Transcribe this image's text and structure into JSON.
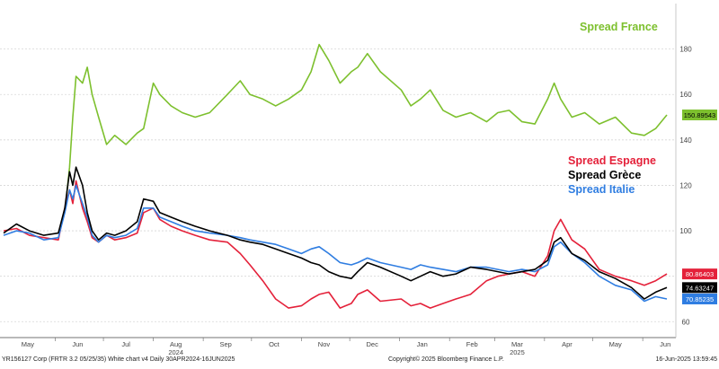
{
  "chart_data": {
    "type": "line",
    "title": "",
    "xlabel": "",
    "ylabel": "",
    "ylim": [
      53,
      200
    ],
    "grid": true,
    "x_ticks": [
      "May",
      "Jun",
      "Jul",
      "Aug",
      "Sep",
      "Oct",
      "Nov",
      "Dec",
      "Jan",
      "Feb",
      "Mar",
      "Apr",
      "May",
      "Jun"
    ],
    "year_labels": [
      "2024",
      "2025"
    ],
    "y_ticks": [
      60,
      80,
      100,
      120,
      140,
      160,
      180
    ],
    "x_range": [
      "2024-04-30",
      "2025-06-16"
    ],
    "legend": [
      {
        "label": "Spread France",
        "color": "#7dc02e"
      },
      {
        "label": "Spread Espagne",
        "color": "#e4213a"
      },
      {
        "label": "Spread Grèce",
        "color": "#000000"
      },
      {
        "label": "Spread Italie",
        "color": "#2f7de1"
      }
    ],
    "series": [
      {
        "name": "Spread France",
        "color": "#7dc02e",
        "last_value": "150.89543",
        "x": [
          "2024-04-30",
          "2024-05-08",
          "2024-05-16",
          "2024-05-25",
          "2024-06-03",
          "2024-06-07",
          "2024-06-10",
          "2024-06-12",
          "2024-06-14",
          "2024-06-18",
          "2024-06-21",
          "2024-06-24",
          "2024-06-28",
          "2024-07-03",
          "2024-07-08",
          "2024-07-15",
          "2024-07-22",
          "2024-07-26",
          "2024-08-01",
          "2024-08-05",
          "2024-08-12",
          "2024-08-19",
          "2024-08-27",
          "2024-09-05",
          "2024-09-16",
          "2024-09-24",
          "2024-09-30",
          "2024-10-08",
          "2024-10-16",
          "2024-10-24",
          "2024-11-01",
          "2024-11-07",
          "2024-11-12",
          "2024-11-18",
          "2024-11-25",
          "2024-12-02",
          "2024-12-06",
          "2024-12-12",
          "2024-12-20",
          "2025-01-02",
          "2025-01-08",
          "2025-01-14",
          "2025-01-20",
          "2025-01-28",
          "2025-02-05",
          "2025-02-14",
          "2025-02-24",
          "2025-03-03",
          "2025-03-10",
          "2025-03-18",
          "2025-03-26",
          "2025-04-03",
          "2025-04-07",
          "2025-04-11",
          "2025-04-18",
          "2025-04-26",
          "2025-05-05",
          "2025-05-15",
          "2025-05-25",
          "2025-06-02",
          "2025-06-09",
          "2025-06-16"
        ],
        "y": [
          null,
          null,
          null,
          null,
          null,
          108,
          128,
          150,
          168,
          165,
          172,
          160,
          150,
          138,
          142,
          138,
          143,
          145,
          165,
          160,
          155,
          152,
          150,
          152,
          160,
          166,
          160,
          158,
          155,
          158,
          162,
          170,
          182,
          175,
          165,
          170,
          172,
          178,
          170,
          162,
          155,
          158,
          162,
          153,
          150,
          152,
          148,
          152,
          153,
          148,
          147,
          158,
          165,
          158,
          150,
          152,
          147,
          150,
          143,
          142,
          145,
          151
        ]
      },
      {
        "name": "Spread Espagne",
        "color": "#e4213a",
        "last_value": "80.86403",
        "x": [
          "2024-04-30",
          "2024-05-08",
          "2024-05-16",
          "2024-05-25",
          "2024-06-03",
          "2024-06-07",
          "2024-06-10",
          "2024-06-12",
          "2024-06-14",
          "2024-06-18",
          "2024-06-21",
          "2024-06-24",
          "2024-06-28",
          "2024-07-03",
          "2024-07-08",
          "2024-07-15",
          "2024-07-22",
          "2024-07-26",
          "2024-08-01",
          "2024-08-05",
          "2024-08-12",
          "2024-08-19",
          "2024-08-27",
          "2024-09-05",
          "2024-09-16",
          "2024-09-24",
          "2024-09-30",
          "2024-10-08",
          "2024-10-16",
          "2024-10-24",
          "2024-11-01",
          "2024-11-07",
          "2024-11-12",
          "2024-11-18",
          "2024-11-25",
          "2024-12-02",
          "2024-12-06",
          "2024-12-12",
          "2024-12-20",
          "2025-01-02",
          "2025-01-08",
          "2025-01-14",
          "2025-01-20",
          "2025-01-28",
          "2025-02-05",
          "2025-02-14",
          "2025-02-24",
          "2025-03-03",
          "2025-03-10",
          "2025-03-18",
          "2025-03-26",
          "2025-04-03",
          "2025-04-07",
          "2025-04-11",
          "2025-04-18",
          "2025-04-26",
          "2025-05-05",
          "2025-05-15",
          "2025-05-25",
          "2025-06-02",
          "2025-06-09",
          "2025-06-16"
        ],
        "y": [
          100,
          101,
          98,
          97,
          96,
          110,
          118,
          112,
          122,
          110,
          104,
          97,
          95,
          98,
          96,
          97,
          99,
          108,
          110,
          105,
          102,
          100,
          98,
          96,
          95,
          90,
          85,
          78,
          70,
          66,
          67,
          70,
          72,
          73,
          66,
          68,
          72,
          74,
          69,
          70,
          67,
          68,
          66,
          68,
          70,
          72,
          78,
          80,
          81,
          82,
          80,
          89,
          100,
          105,
          96,
          92,
          83,
          80,
          78,
          76,
          78,
          81
        ]
      },
      {
        "name": "Spread Grèce",
        "color": "#000000",
        "last_value": "74.63247",
        "x": [
          "2024-04-30",
          "2024-05-08",
          "2024-05-16",
          "2024-05-25",
          "2024-06-03",
          "2024-06-07",
          "2024-06-10",
          "2024-06-12",
          "2024-06-14",
          "2024-06-18",
          "2024-06-21",
          "2024-06-24",
          "2024-06-28",
          "2024-07-03",
          "2024-07-08",
          "2024-07-15",
          "2024-07-22",
          "2024-07-26",
          "2024-08-01",
          "2024-08-05",
          "2024-08-12",
          "2024-08-19",
          "2024-08-27",
          "2024-09-05",
          "2024-09-16",
          "2024-09-24",
          "2024-09-30",
          "2024-10-08",
          "2024-10-16",
          "2024-10-24",
          "2024-11-01",
          "2024-11-07",
          "2024-11-12",
          "2024-11-18",
          "2024-11-25",
          "2024-12-02",
          "2024-12-06",
          "2024-12-12",
          "2024-12-20",
          "2025-01-02",
          "2025-01-08",
          "2025-01-14",
          "2025-01-20",
          "2025-01-28",
          "2025-02-05",
          "2025-02-14",
          "2025-02-24",
          "2025-03-03",
          "2025-03-10",
          "2025-03-18",
          "2025-03-26",
          "2025-04-03",
          "2025-04-07",
          "2025-04-11",
          "2025-04-18",
          "2025-04-26",
          "2025-05-05",
          "2025-05-15",
          "2025-05-25",
          "2025-06-02",
          "2025-06-09",
          "2025-06-16"
        ],
        "y": [
          99,
          103,
          100,
          98,
          99,
          110,
          126,
          120,
          128,
          120,
          108,
          100,
          96,
          99,
          98,
          100,
          104,
          114,
          113,
          108,
          106,
          104,
          102,
          100,
          98,
          96,
          95,
          94,
          92,
          90,
          88,
          86,
          85,
          82,
          80,
          79,
          82,
          86,
          84,
          80,
          78,
          80,
          82,
          80,
          81,
          84,
          83,
          82,
          81,
          82,
          83,
          87,
          95,
          97,
          90,
          87,
          82,
          79,
          75,
          70,
          73,
          75
        ]
      },
      {
        "name": "Spread Italie",
        "color": "#2f7de1",
        "last_value": "70.85235",
        "x": [
          "2024-04-30",
          "2024-05-08",
          "2024-05-16",
          "2024-05-25",
          "2024-06-03",
          "2024-06-07",
          "2024-06-10",
          "2024-06-12",
          "2024-06-14",
          "2024-06-18",
          "2024-06-21",
          "2024-06-24",
          "2024-06-28",
          "2024-07-03",
          "2024-07-08",
          "2024-07-15",
          "2024-07-22",
          "2024-07-26",
          "2024-08-01",
          "2024-08-05",
          "2024-08-12",
          "2024-08-19",
          "2024-08-27",
          "2024-09-05",
          "2024-09-16",
          "2024-09-24",
          "2024-09-30",
          "2024-10-08",
          "2024-10-16",
          "2024-10-24",
          "2024-11-01",
          "2024-11-07",
          "2024-11-12",
          "2024-11-18",
          "2024-11-25",
          "2024-12-02",
          "2024-12-06",
          "2024-12-12",
          "2024-12-20",
          "2025-01-02",
          "2025-01-08",
          "2025-01-14",
          "2025-01-20",
          "2025-01-28",
          "2025-02-05",
          "2025-02-14",
          "2025-02-24",
          "2025-03-03",
          "2025-03-10",
          "2025-03-18",
          "2025-03-26",
          "2025-04-03",
          "2025-04-07",
          "2025-04-11",
          "2025-04-18",
          "2025-04-26",
          "2025-05-05",
          "2025-05-15",
          "2025-05-25",
          "2025-06-02",
          "2025-06-09",
          "2025-06-16"
        ],
        "y": [
          98,
          100,
          99,
          96,
          97,
          108,
          118,
          114,
          120,
          112,
          106,
          98,
          95,
          98,
          97,
          98,
          101,
          110,
          110,
          106,
          104,
          102,
          100,
          99,
          98,
          97,
          96,
          95,
          94,
          92,
          90,
          92,
          93,
          90,
          86,
          85,
          86,
          88,
          86,
          84,
          83,
          85,
          84,
          83,
          82,
          84,
          84,
          83,
          82,
          83,
          82,
          85,
          93,
          95,
          90,
          86,
          80,
          76,
          74,
          69,
          71,
          70
        ]
      }
    ]
  },
  "footer": {
    "left": "YR156127 Corp (FRTR 3.2 05/25/35) White chart v4  Daily 30APR2024-16JUN2025",
    "center": "Copyright© 2025 Bloomberg Finance L.P.",
    "right": "16-Jun-2025 13:59:45"
  }
}
